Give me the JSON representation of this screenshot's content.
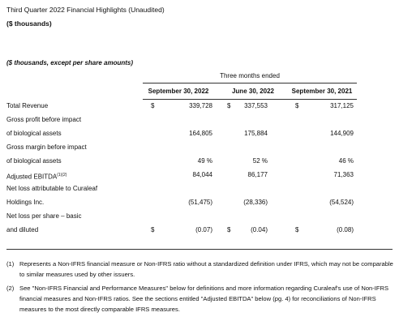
{
  "header": {
    "title": "Third Quarter 2022 Financial Highlights (Unaudited)",
    "subtitle": "($ thousands)"
  },
  "table": {
    "caption": "($ thousands, except per share amounts)",
    "group_header": "Three months ended",
    "columns": [
      "September 30, 2022",
      "June 30, 2022",
      "September 30, 2021"
    ],
    "rows": [
      {
        "label": [
          "Total Revenue"
        ],
        "cells": [
          {
            "currency": "$",
            "value": "339,728"
          },
          {
            "currency": "$",
            "value": "337,553"
          },
          {
            "currency": "$",
            "value": "317,125"
          }
        ]
      },
      {
        "label": [
          "Gross profit before impact",
          "of biological assets"
        ],
        "cells": [
          {
            "value": "164,805"
          },
          {
            "value": "175,884"
          },
          {
            "value": "144,909"
          }
        ]
      },
      {
        "label": [
          "Gross margin before impact",
          "of biological assets"
        ],
        "cells": [
          {
            "value": "49 %"
          },
          {
            "value": "52 %"
          },
          {
            "value": "46 %"
          }
        ]
      },
      {
        "label": [
          "Adjusted EBITDA"
        ],
        "label_sup": "(1)(2)",
        "cells": [
          {
            "value": "84,044"
          },
          {
            "value": "86,177"
          },
          {
            "value": "71,363"
          }
        ]
      },
      {
        "label": [
          "Net loss attributable to Curaleaf",
          "Holdings Inc."
        ],
        "cells": [
          {
            "value": "(51,475)"
          },
          {
            "value": "(28,336)"
          },
          {
            "value": "(54,524)"
          }
        ]
      },
      {
        "label": [
          "Net loss per share – basic",
          "and diluted"
        ],
        "cells": [
          {
            "currency": "$",
            "value": "(0.07)"
          },
          {
            "currency": "$",
            "value": "(0.04)"
          },
          {
            "currency": "$",
            "value": "(0.08)"
          }
        ]
      }
    ]
  },
  "footnotes": [
    {
      "marker": "(1)",
      "text": "Represents a Non-IFRS financial measure or Non-IFRS ratio without a standardized definition under IFRS, which may not be comparable to similar measures used by other issuers."
    },
    {
      "marker": "(2)",
      "text": "See \"Non-IFRS Financial and Performance Measures\" below for definitions and more information regarding Curaleaf's use of Non-IFRS financial measures and Non-IFRS ratios. See the sections entitled \"Adjusted EBITDA\" below (pg. 4) for reconciliations of Non-IFRS measures to the most directly comparable IFRS measures."
    }
  ]
}
